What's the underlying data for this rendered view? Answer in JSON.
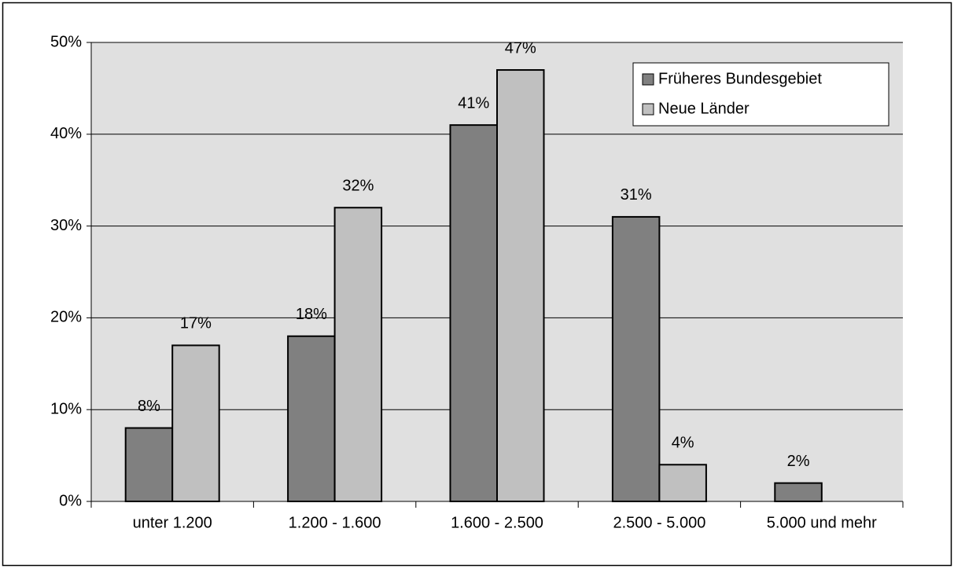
{
  "chart_data": {
    "type": "bar",
    "categories": [
      "unter 1.200",
      "1.200 - 1.600",
      "1.600 - 2.500",
      "2.500 - 5.000",
      "5.000 und mehr"
    ],
    "series": [
      {
        "name": "Früheres Bundesgebiet",
        "color": "#808080",
        "values": [
          8,
          18,
          41,
          31,
          2
        ],
        "value_labels": [
          "8%",
          "18%",
          "41%",
          "31%",
          "2%"
        ]
      },
      {
        "name": "Neue Länder",
        "color": "#c0c0c0",
        "values": [
          17,
          32,
          47,
          4,
          null
        ],
        "value_labels": [
          "17%",
          "32%",
          "47%",
          "4%",
          null
        ]
      }
    ],
    "ylim": [
      0,
      50
    ],
    "yticks": [
      {
        "value": 0,
        "label": "0%"
      },
      {
        "value": 10,
        "label": "10%"
      },
      {
        "value": 20,
        "label": "20%"
      },
      {
        "value": 30,
        "label": "30%"
      },
      {
        "value": 40,
        "label": "40%"
      },
      {
        "value": 50,
        "label": "50%"
      }
    ],
    "grid": true,
    "legend": "top-right"
  }
}
